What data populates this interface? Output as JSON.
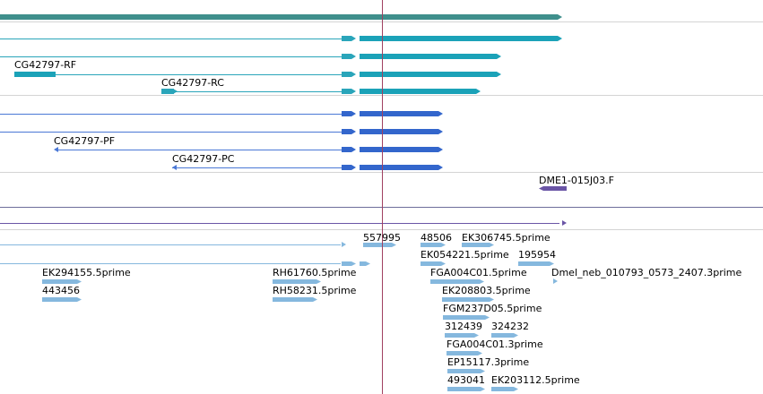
{
  "colors": {
    "top_bar": "#3f8f8c",
    "utr_teal": "#2aa5ba",
    "cds_teal": "#1ba2b8",
    "utr_blue": "#4a78d6",
    "cds_blue": "#3366cc",
    "purple": "#6a55a6",
    "est": "#85b8de",
    "separator": "#d4d4d4",
    "separator_dark": "#6e6e9a",
    "cursor": "#a04060"
  },
  "labels": {
    "rf": "CG42797-RF",
    "rc": "CG42797-RC",
    "pf": "CG42797-PF",
    "pc": "CG42797-PC",
    "dme1": "DME1-015J03.F",
    "est_557995": "557995",
    "est_48506": "48506",
    "est_ek306745": "EK306745.5prime",
    "est_ek054221": "EK054221.5prime",
    "est_195954": "195954",
    "est_ek294155": "EK294155.5prime",
    "est_rh61760": "RH61760.5prime",
    "est_fga004c01_5": "FGA004C01.5prime",
    "est_dmel_neb": "Dmel_neb_010793_0573_2407.3prime",
    "est_443456": "443456",
    "est_rh58231": "RH58231.5prime",
    "est_ek208803": "EK208803.5prime",
    "est_fgm237d05": "FGM237D05.5prime",
    "est_312439": "312439",
    "est_324232": "324232",
    "est_fga004c01_3": "FGA004C01.3prime",
    "est_ep15117": "EP15117.3prime",
    "est_493041": "493041",
    "est_ek203112": "EK203112.5prime"
  }
}
